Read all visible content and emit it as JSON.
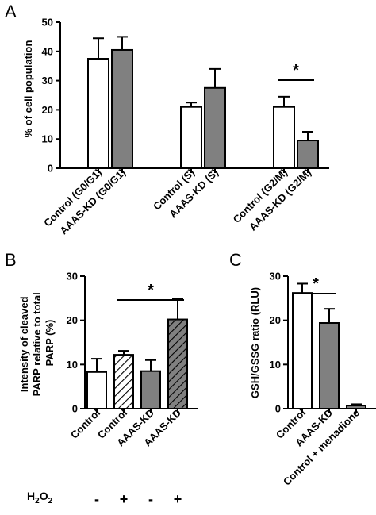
{
  "chart_data": [
    {
      "id": "A",
      "type": "bar",
      "panel_letter": "A",
      "ylabel": "% of cell population",
      "ylim": [
        0,
        50
      ],
      "yticks": [
        "0",
        "10",
        "20",
        "30",
        "40",
        "50"
      ],
      "categories": [
        "Control (G0/G1)",
        "AAAS-KD (G0/G1)",
        "Control (S)",
        "AAAS-KD (S)",
        "Control (G2/M)",
        "AAAS-KD (G2/M)"
      ],
      "values": [
        37.5,
        40.5,
        21,
        27.5,
        21,
        9.5
      ],
      "errors": [
        7,
        4.5,
        1.5,
        6.5,
        3.5,
        3
      ],
      "fill": [
        "white",
        "gray",
        "white",
        "gray",
        "white",
        "gray"
      ],
      "significance": [
        {
          "between": [
            4,
            5
          ],
          "label": "*"
        }
      ]
    },
    {
      "id": "B",
      "type": "bar",
      "panel_letter": "B",
      "ylabel_lines": [
        "Intensity of cleaved",
        "PARP relative to total",
        "PARP (%)"
      ],
      "ylim": [
        0,
        30
      ],
      "yticks": [
        "0",
        "10",
        "20",
        "30"
      ],
      "categories": [
        "Control",
        "Control",
        "AAAS-KD",
        "AAAS-KD"
      ],
      "values": [
        8.3,
        12.2,
        8.5,
        20.2
      ],
      "errors": [
        3,
        0.9,
        2.5,
        4.7
      ],
      "fill": [
        "white",
        "white-hatched",
        "gray",
        "gray-hatched"
      ],
      "treatment_label": "H2O2",
      "treatment_signs": [
        "-",
        "+",
        "-",
        "+"
      ],
      "significance": [
        {
          "between": [
            1,
            3
          ],
          "label": "*"
        }
      ]
    },
    {
      "id": "C",
      "type": "bar",
      "panel_letter": "C",
      "ylabel": "GSH/GSSG ratio (RLU)",
      "ylim": [
        0,
        30
      ],
      "yticks": [
        "0",
        "10",
        "20",
        "30"
      ],
      "categories": [
        "Control",
        "AAAS-KD",
        "Control + menadione"
      ],
      "values": [
        26.2,
        19.4,
        0.7
      ],
      "errors": [
        2.1,
        3.2,
        0.3
      ],
      "fill": [
        "white",
        "gray",
        "gray"
      ],
      "significance": [
        {
          "between": [
            0,
            1
          ],
          "label": "*"
        }
      ]
    }
  ],
  "colors": {
    "gray_fill": "#808080",
    "stroke": "#000000",
    "white_fill": "#ffffff"
  }
}
